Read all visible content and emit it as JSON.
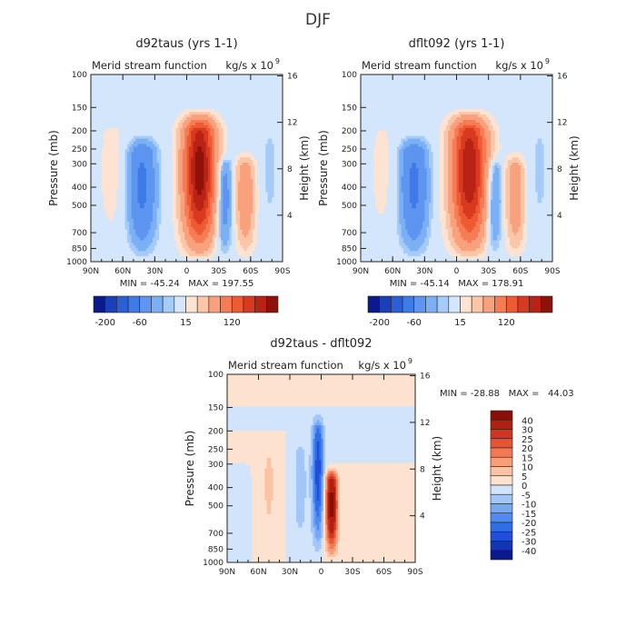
{
  "figure": {
    "title": "DJF"
  },
  "colors": {
    "main_scale": [
      "#0a1a8c",
      "#1a3fb8",
      "#2a5fd8",
      "#3f7be8",
      "#5d95f0",
      "#7cb0f5",
      "#a5cbf8",
      "#d4e6fb",
      "#fde3d2",
      "#fbc6a8",
      "#f9a17d",
      "#f67c55",
      "#ee5a33",
      "#d8391f",
      "#b92315",
      "#8f120a"
    ],
    "diff_scale": [
      "#0a1a8c",
      "#1533b4",
      "#1f4fd6",
      "#2f6ee8",
      "#4f8bf0",
      "#77a8f4",
      "#a3c6f8",
      "#d2e4fb",
      "#fde2d0",
      "#fbc3a3",
      "#f89f79",
      "#f27a52",
      "#e65532",
      "#cf3620",
      "#b11f12",
      "#880f08"
    ]
  },
  "chart_data": [
    {
      "type": "heatmap",
      "title": "d92taus (yrs 1-1)",
      "subtitle_left": "Merid stream function",
      "units": "kg/s x 10",
      "units_exp": "9",
      "ylabel": "Pressure (mb)",
      "ylabel_right": "Height (km)",
      "x_ticks": [
        "90N",
        "60N",
        "30N",
        "0",
        "30S",
        "60S",
        "90S"
      ],
      "y_ticks": [
        "100",
        "150",
        "200",
        "250",
        "300",
        "400",
        "500",
        "700",
        "850",
        "1000"
      ],
      "y_right_ticks": [
        "16",
        "12",
        "8",
        "4"
      ],
      "min_max_text": "MIN = -45.24   MAX = 197.55",
      "cells": [
        {
          "lat": -12,
          "amp": 197.55,
          "sigma_lat": 10,
          "top_p": 150
        },
        {
          "lat": 42,
          "amp": -45.24,
          "sigma_lat": 9,
          "top_p": 200
        },
        {
          "lat": -34,
          "amp": -38,
          "sigma_lat": 6,
          "top_p": 250
        },
        {
          "lat": -55,
          "amp": 55,
          "sigma_lat": 6,
          "top_p": 250
        },
        {
          "lat": 70,
          "amp": 8,
          "sigma_lat": 10,
          "top_p": 150
        },
        {
          "lat": -78,
          "amp": -6,
          "sigma_lat": 8,
          "top_p": 150
        }
      ],
      "colorbar": {
        "labels": [
          "-200",
          "-60",
          "15",
          "120"
        ]
      }
    },
    {
      "type": "heatmap",
      "title": "dflt092 (yrs 1-1)",
      "subtitle_left": "Merid stream function",
      "units": "kg/s x 10",
      "units_exp": "9",
      "ylabel": "Pressure (mb)",
      "ylabel_right": "Height (km)",
      "x_ticks": [
        "90N",
        "60N",
        "30N",
        "0",
        "30S",
        "60S",
        "90S"
      ],
      "y_ticks": [
        "100",
        "150",
        "200",
        "250",
        "300",
        "400",
        "500",
        "700",
        "850",
        "1000"
      ],
      "y_right_ticks": [
        "16",
        "12",
        "8",
        "4"
      ],
      "min_max_text": "MIN = -45.14   MAX = 178.91",
      "cells": [
        {
          "lat": -12,
          "amp": 178.91,
          "sigma_lat": 11,
          "top_p": 150
        },
        {
          "lat": 40,
          "amp": -45.14,
          "sigma_lat": 9,
          "top_p": 200
        },
        {
          "lat": -34,
          "amp": -36,
          "sigma_lat": 6,
          "top_p": 250
        },
        {
          "lat": -55,
          "amp": 50,
          "sigma_lat": 6,
          "top_p": 250
        },
        {
          "lat": 70,
          "amp": 7,
          "sigma_lat": 10,
          "top_p": 150
        },
        {
          "lat": -78,
          "amp": -6,
          "sigma_lat": 8,
          "top_p": 150
        }
      ],
      "colorbar": {
        "labels": [
          "-200",
          "-60",
          "15",
          "120"
        ]
      }
    },
    {
      "type": "heatmap",
      "title": "d92taus - dflt092",
      "subtitle_left": "Merid stream function",
      "units": "kg/s x 10",
      "units_exp": "9",
      "ylabel": "Pressure (mb)",
      "ylabel_right": "Height (km)",
      "x_ticks": [
        "90N",
        "60N",
        "30N",
        "0",
        "30S",
        "60S",
        "90S"
      ],
      "y_ticks": [
        "100",
        "150",
        "200",
        "250",
        "300",
        "400",
        "500",
        "700",
        "850",
        "1000"
      ],
      "y_right_ticks": [
        "16",
        "12",
        "8",
        "4"
      ],
      "min_max_text": "MIN = -28.88   MAX =   44.03",
      "cells": [
        {
          "lat": -10,
          "amp": 44.03,
          "sigma_lat": 4,
          "top_p": 300
        },
        {
          "lat": 3,
          "amp": -28.88,
          "sigma_lat": 4,
          "top_p": 150
        },
        {
          "lat": 20,
          "amp": -8,
          "sigma_lat": 5,
          "top_p": 200
        },
        {
          "lat": 50,
          "amp": 6,
          "sigma_lat": 6,
          "top_p": 200
        },
        {
          "lat": 80,
          "amp": -5,
          "sigma_lat": 5,
          "top_p": 300
        },
        {
          "lat": -40,
          "amp": 5,
          "sigma_lat": 5,
          "top_p": 300
        }
      ],
      "colorbar": {
        "labels": [
          "40",
          "30",
          "25",
          "20",
          "15",
          "10",
          "5",
          "0",
          "-5",
          "-10",
          "-15",
          "-20",
          "-25",
          "-30",
          "-40"
        ]
      }
    }
  ]
}
